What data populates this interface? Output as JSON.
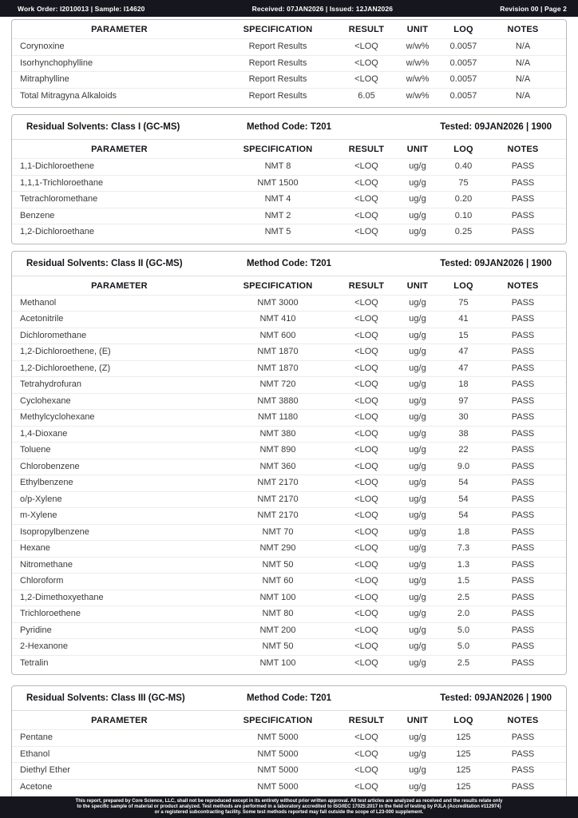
{
  "header": {
    "left": "Work Order: I2010013 | Sample: I14620",
    "center": "Received: 07JAN2026 | Issued: 12JAN2026",
    "right": "Revision 00 | Page 2"
  },
  "columns": [
    "PARAMETER",
    "SPECIFICATION",
    "RESULT",
    "UNIT",
    "LOQ",
    "NOTES"
  ],
  "sections": [
    {
      "title": null,
      "method": null,
      "tested": null,
      "rows": [
        [
          "Corynoxine",
          "Report Results",
          "<LOQ",
          "w/w%",
          "0.0057",
          "N/A"
        ],
        [
          "Isorhynchophylline",
          "Report Results",
          "<LOQ",
          "w/w%",
          "0.0057",
          "N/A"
        ],
        [
          "Mitraphylline",
          "Report Results",
          "<LOQ",
          "w/w%",
          "0.0057",
          "N/A"
        ],
        [
          "Total Mitragyna Alkaloids",
          "Report Results",
          "6.05",
          "w/w%",
          "0.0057",
          "N/A"
        ]
      ]
    },
    {
      "title": "Residual Solvents: Class I (GC-MS)",
      "method": "Method Code: T201",
      "tested": "Tested: 09JAN2026 | 1900",
      "rows": [
        [
          "1,1-Dichloroethene",
          "NMT 8",
          "<LOQ",
          "ug/g",
          "0.40",
          "PASS"
        ],
        [
          "1,1,1-Trichloroethane",
          "NMT 1500",
          "<LOQ",
          "ug/g",
          "75",
          "PASS"
        ],
        [
          "Tetrachloromethane",
          "NMT 4",
          "<LOQ",
          "ug/g",
          "0.20",
          "PASS"
        ],
        [
          "Benzene",
          "NMT 2",
          "<LOQ",
          "ug/g",
          "0.10",
          "PASS"
        ],
        [
          "1,2-Dichloroethane",
          "NMT 5",
          "<LOQ",
          "ug/g",
          "0.25",
          "PASS"
        ]
      ]
    },
    {
      "title": "Residual Solvents: Class II (GC-MS)",
      "method": "Method Code: T201",
      "tested": "Tested: 09JAN2026 | 1900",
      "rows": [
        [
          "Methanol",
          "NMT 3000",
          "<LOQ",
          "ug/g",
          "75",
          "PASS"
        ],
        [
          "Acetonitrile",
          "NMT 410",
          "<LOQ",
          "ug/g",
          "41",
          "PASS"
        ],
        [
          "Dichloromethane",
          "NMT 600",
          "<LOQ",
          "ug/g",
          "15",
          "PASS"
        ],
        [
          "1,2-Dichloroethene, (E)",
          "NMT 1870",
          "<LOQ",
          "ug/g",
          "47",
          "PASS"
        ],
        [
          "1,2-Dichloroethene, (Z)",
          "NMT 1870",
          "<LOQ",
          "ug/g",
          "47",
          "PASS"
        ],
        [
          "Tetrahydrofuran",
          "NMT 720",
          "<LOQ",
          "ug/g",
          "18",
          "PASS"
        ],
        [
          "Cyclohexane",
          "NMT 3880",
          "<LOQ",
          "ug/g",
          "97",
          "PASS"
        ],
        [
          "Methylcyclohexane",
          "NMT 1180",
          "<LOQ",
          "ug/g",
          "30",
          "PASS"
        ],
        [
          "1,4-Dioxane",
          "NMT 380",
          "<LOQ",
          "ug/g",
          "38",
          "PASS"
        ],
        [
          "Toluene",
          "NMT 890",
          "<LOQ",
          "ug/g",
          "22",
          "PASS"
        ],
        [
          "Chlorobenzene",
          "NMT 360",
          "<LOQ",
          "ug/g",
          "9.0",
          "PASS"
        ],
        [
          "Ethylbenzene",
          "NMT 2170",
          "<LOQ",
          "ug/g",
          "54",
          "PASS"
        ],
        [
          "o/p-Xylene",
          "NMT 2170",
          "<LOQ",
          "ug/g",
          "54",
          "PASS"
        ],
        [
          "m-Xylene",
          "NMT 2170",
          "<LOQ",
          "ug/g",
          "54",
          "PASS"
        ],
        [
          "Isopropylbenzene",
          "NMT 70",
          "<LOQ",
          "ug/g",
          "1.8",
          "PASS"
        ],
        [
          "Hexane",
          "NMT 290",
          "<LOQ",
          "ug/g",
          "7.3",
          "PASS"
        ],
        [
          "Nitromethane",
          "NMT 50",
          "<LOQ",
          "ug/g",
          "1.3",
          "PASS"
        ],
        [
          "Chloroform",
          "NMT 60",
          "<LOQ",
          "ug/g",
          "1.5",
          "PASS"
        ],
        [
          "1,2-Dimethoxyethane",
          "NMT 100",
          "<LOQ",
          "ug/g",
          "2.5",
          "PASS"
        ],
        [
          "Trichloroethene",
          "NMT 80",
          "<LOQ",
          "ug/g",
          "2.0",
          "PASS"
        ],
        [
          "Pyridine",
          "NMT 200",
          "<LOQ",
          "ug/g",
          "5.0",
          "PASS"
        ],
        [
          "2-Hexanone",
          "NMT 50",
          "<LOQ",
          "ug/g",
          "5.0",
          "PASS"
        ],
        [
          "Tetralin",
          "NMT 100",
          "<LOQ",
          "ug/g",
          "2.5",
          "PASS"
        ]
      ]
    },
    {
      "title": "Residual Solvents: Class III (GC-MS)",
      "method": "Method Code: T201",
      "tested": "Tested: 09JAN2026 | 1900",
      "rows": [
        [
          "Pentane",
          "NMT 5000",
          "<LOQ",
          "ug/g",
          "125",
          "PASS"
        ],
        [
          "Ethanol",
          "NMT 5000",
          "<LOQ",
          "ug/g",
          "125",
          "PASS"
        ],
        [
          "Diethyl Ether",
          "NMT 5000",
          "<LOQ",
          "ug/g",
          "125",
          "PASS"
        ],
        [
          "Acetone",
          "NMT 5000",
          "<LOQ",
          "ug/g",
          "125",
          "PASS"
        ]
      ]
    }
  ],
  "footer": {
    "lines": [
      "This report, prepared by Core Science, LLC, shall not be reproduced except in its entirety without prior written approval. All test articles are analyzed as received and the results relate only",
      "to the specific sample of material or product analyzed. Test methods are performed in a laboratory accredited to ISO/IEC 17025:2017 in the field of testing by PJLA (Accreditation #112974)",
      "or a registered subcontracting facility. Some test methods reported may fall outside the scope of L23-000 supplement."
    ]
  }
}
